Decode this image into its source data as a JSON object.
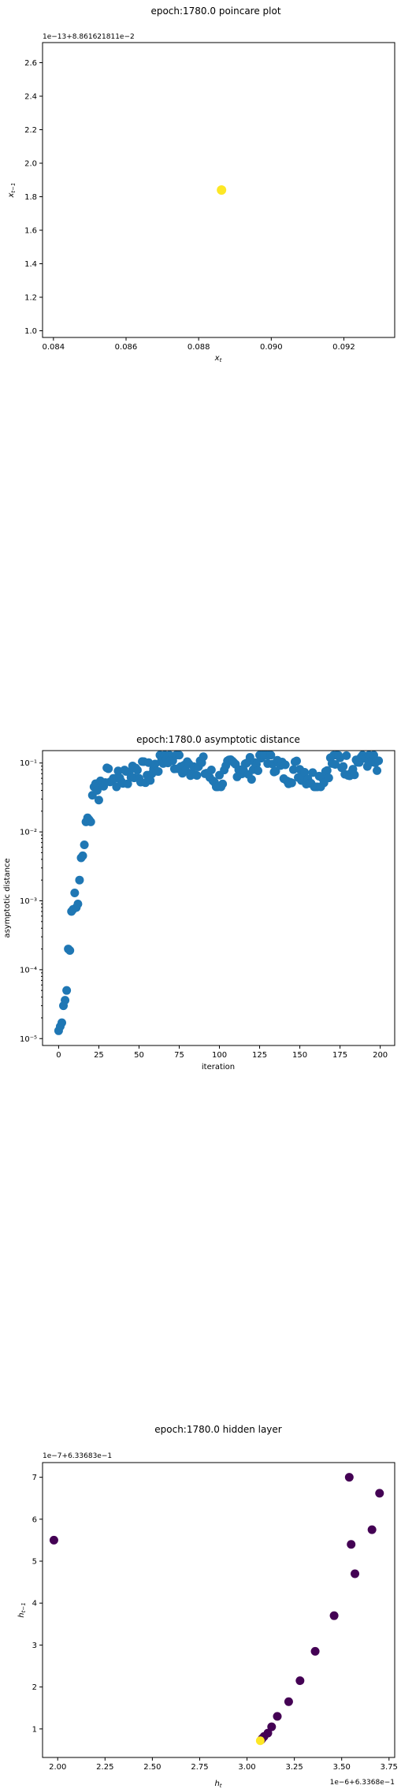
{
  "chart_data": [
    {
      "type": "scatter",
      "title": "epoch:1780.0 poincare plot",
      "xlabel": "x_t",
      "ylabel": "x_{t-1}",
      "x_offset_text": "",
      "y_offset_text": "1e−13+8.861621811e−2",
      "xlim": [
        0.0837,
        0.0934
      ],
      "ylim": [
        0.96,
        2.72
      ],
      "xticks": [
        0.084,
        0.086,
        0.088,
        0.09,
        0.092
      ],
      "xtick_labels": [
        "0.084",
        "0.086",
        "0.088",
        "0.090",
        "0.092"
      ],
      "yticks": [
        1.0,
        1.2,
        1.4,
        1.6,
        1.8,
        2.0,
        2.2,
        2.4,
        2.6
      ],
      "ytick_labels": [
        "1.0",
        "1.2",
        "1.4",
        "1.6",
        "1.8",
        "2.0",
        "2.2",
        "2.4",
        "2.6"
      ],
      "color": "#fde725",
      "points": [
        [
          0.08863,
          1.84
        ]
      ]
    },
    {
      "type": "scatter",
      "title": "epoch:1780.0 asymptotic distance",
      "xlabel": "iteration",
      "ylabel": "asymptotic distance",
      "yscale": "log",
      "xlim": [
        -10,
        209
      ],
      "ylim_log10": [
        -5.1,
        -0.82
      ],
      "xticks": [
        0,
        25,
        50,
        75,
        100,
        125,
        150,
        175,
        200
      ],
      "xtick_labels": [
        "0",
        "25",
        "50",
        "75",
        "100",
        "125",
        "150",
        "175",
        "200"
      ],
      "yticks_log10": [
        -5,
        -4,
        -3,
        -2,
        -1
      ],
      "ytick_labels": [
        "10⁻⁵",
        "10⁻⁴",
        "10⁻³",
        "10⁻²",
        "10⁻¹"
      ],
      "color": "#1f77b4",
      "early_points": [
        [
          0,
          1.3e-05
        ],
        [
          1,
          1.5e-05
        ],
        [
          2,
          1.7e-05
        ],
        [
          3,
          3e-05
        ],
        [
          4,
          3.6e-05
        ],
        [
          5,
          5e-05
        ],
        [
          6,
          0.0002
        ],
        [
          7,
          0.00019
        ],
        [
          8,
          0.0007
        ],
        [
          9,
          0.00075
        ],
        [
          10,
          0.0013
        ],
        [
          11,
          0.0008
        ],
        [
          12,
          0.0009
        ],
        [
          13,
          0.002
        ],
        [
          14,
          0.0042
        ],
        [
          15,
          0.0045
        ],
        [
          16,
          0.0065
        ],
        [
          17,
          0.014
        ],
        [
          18,
          0.016
        ],
        [
          19,
          0.015
        ],
        [
          20,
          0.014
        ],
        [
          21,
          0.034
        ],
        [
          22,
          0.045
        ],
        [
          23,
          0.05
        ],
        [
          24,
          0.04
        ],
        [
          25,
          0.029
        ],
        [
          26,
          0.055
        ],
        [
          27,
          0.048
        ],
        [
          28,
          0.046
        ],
        [
          29,
          0.052
        ]
      ],
      "plateau": {
        "from": 30,
        "to": 199,
        "min": 0.045,
        "max": 0.13,
        "center": 0.085
      }
    },
    {
      "type": "scatter",
      "title": "epoch:1780.0 hidden layer",
      "xlabel": "h_t",
      "ylabel": "h_{t-1}",
      "x_offset_text": "1e−6+6.3368e−1",
      "y_offset_text": "1e−7+6.33683e−1",
      "xlim": [
        1.92,
        3.78
      ],
      "ylim": [
        0.32,
        7.35
      ],
      "xticks": [
        2.0,
        2.25,
        2.5,
        2.75,
        3.0,
        3.25,
        3.5,
        3.75
      ],
      "xtick_labels": [
        "2.00",
        "2.25",
        "2.50",
        "2.75",
        "3.00",
        "3.25",
        "3.50",
        "3.75"
      ],
      "yticks": [
        1,
        2,
        3,
        4,
        5,
        6,
        7
      ],
      "ytick_labels": [
        "1",
        "2",
        "3",
        "4",
        "5",
        "6",
        "7"
      ],
      "colormap": [
        "#440154",
        "#fde725"
      ],
      "points": [
        [
          1.98,
          5.5,
          "#440154"
        ],
        [
          3.54,
          7.0,
          "#440154"
        ],
        [
          3.7,
          6.62,
          "#440154"
        ],
        [
          3.66,
          5.75,
          "#440154"
        ],
        [
          3.55,
          5.4,
          "#440154"
        ],
        [
          3.57,
          4.7,
          "#440154"
        ],
        [
          3.46,
          3.7,
          "#440154"
        ],
        [
          3.36,
          2.85,
          "#440154"
        ],
        [
          3.28,
          2.15,
          "#440154"
        ],
        [
          3.22,
          1.65,
          "#440154"
        ],
        [
          3.16,
          1.3,
          "#440154"
        ],
        [
          3.13,
          1.05,
          "#440154"
        ],
        [
          3.11,
          0.9,
          "#440154"
        ],
        [
          3.09,
          0.82,
          "#440154"
        ],
        [
          3.08,
          0.77,
          "#440154"
        ],
        [
          3.075,
          0.74,
          "#440154"
        ],
        [
          3.07,
          0.72,
          "#fde725"
        ]
      ]
    }
  ]
}
